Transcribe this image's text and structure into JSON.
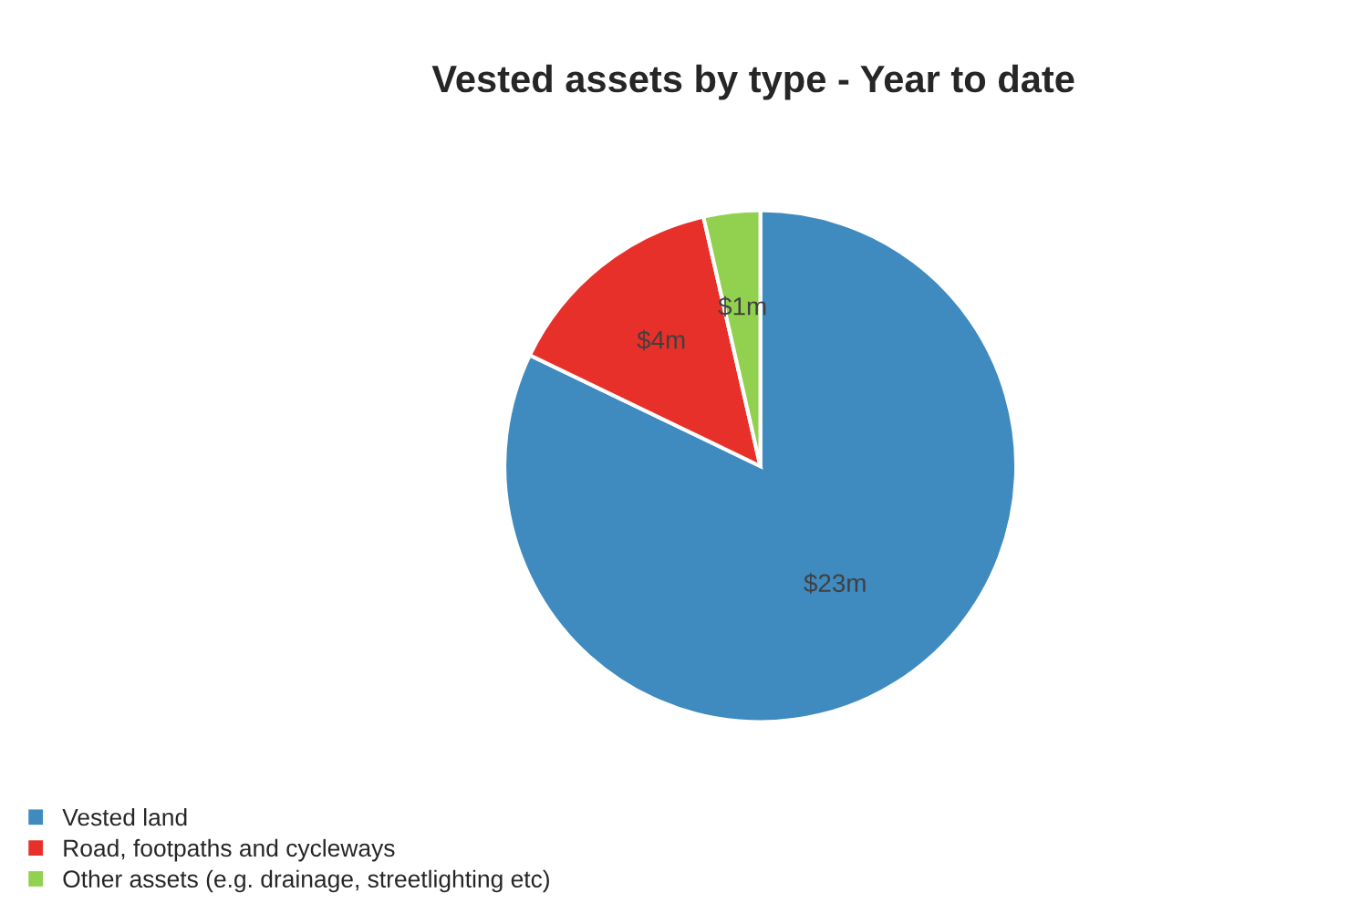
{
  "chart_data": {
    "type": "pie",
    "title": "Vested assets by type - Year to date",
    "categories": [
      "Vested land",
      "Road, footpaths and cycleways",
      "Other assets (e.g. drainage, streetlighting etc)"
    ],
    "values": [
      23,
      4,
      1
    ],
    "value_labels": [
      "$23m",
      "$4m",
      "$1m"
    ],
    "colors": [
      "#3f8abf",
      "#e8302a",
      "#92d050"
    ],
    "legend": "bottom left"
  }
}
